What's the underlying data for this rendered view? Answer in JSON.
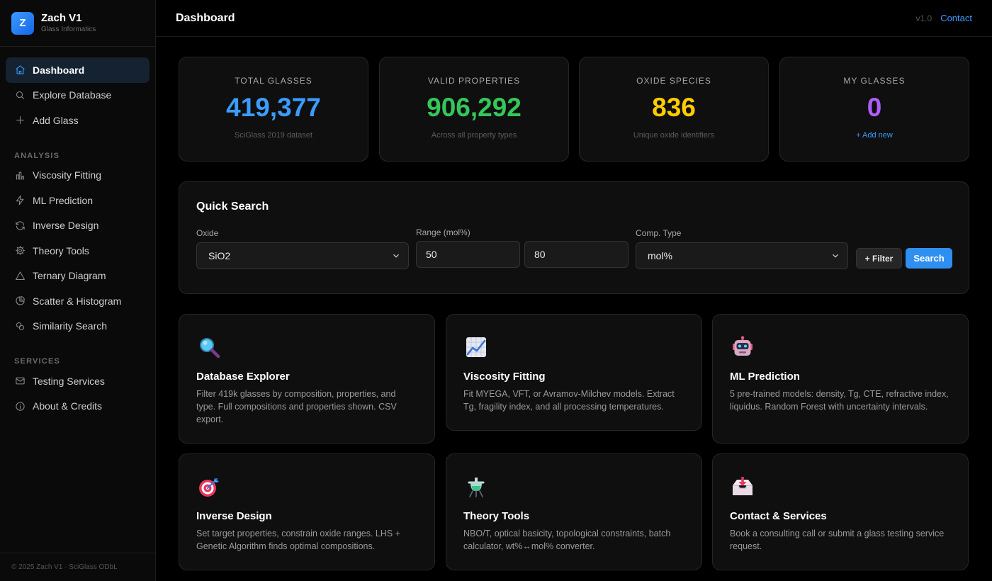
{
  "brand": {
    "logo_letter": "Z",
    "title": "Zach V1",
    "subtitle": "Glass Informatics"
  },
  "nav": {
    "main": [
      {
        "label": "Dashboard",
        "icon": "home-icon",
        "active": true
      },
      {
        "label": "Explore Database",
        "icon": "search-icon"
      },
      {
        "label": "Add Glass",
        "icon": "plus-icon"
      }
    ],
    "analysis_label": "ANALYSIS",
    "analysis": [
      {
        "label": "Viscosity Fitting",
        "icon": "bar-chart-icon"
      },
      {
        "label": "ML Prediction",
        "icon": "lightning-icon"
      },
      {
        "label": "Inverse Design",
        "icon": "refresh-icon"
      },
      {
        "label": "Theory Tools",
        "icon": "gear-icon"
      },
      {
        "label": "Ternary Diagram",
        "icon": "triangle-icon"
      },
      {
        "label": "Scatter & Histogram",
        "icon": "pie-chart-icon"
      },
      {
        "label": "Similarity Search",
        "icon": "circles-icon"
      }
    ],
    "services_label": "SERVICES",
    "services": [
      {
        "label": "Testing Services",
        "icon": "mail-icon"
      },
      {
        "label": "About & Credits",
        "icon": "info-icon"
      }
    ]
  },
  "footer": {
    "text": "© 2025 Zach V1 · SciGlass ODbL"
  },
  "topbar": {
    "title": "Dashboard",
    "version": "v1.0",
    "contact": "Contact"
  },
  "stats": [
    {
      "label": "TOTAL GLASSES",
      "value": "419,377",
      "sub": "SciGlass 2019 dataset",
      "color": "#3b9cff"
    },
    {
      "label": "VALID PROPERTIES",
      "value": "906,292",
      "sub": "Across all property types",
      "color": "#34c759"
    },
    {
      "label": "OXIDE SPECIES",
      "value": "836",
      "sub": "Unique oxide identifiers",
      "color": "#ffcc00"
    },
    {
      "label": "MY GLASSES",
      "value": "0",
      "sub": "+ Add new",
      "color": "#b05cff"
    }
  ],
  "quick_search": {
    "title": "Quick Search",
    "oxide_label": "Oxide",
    "oxide_value": "SiO2",
    "range_label": "Range (mol%)",
    "range_min": "50",
    "range_max": "80",
    "comp_label": "Comp. Type",
    "comp_value": "mol%",
    "filter_button": "+ Filter",
    "search_button": "Search"
  },
  "features": [
    {
      "title": "Database Explorer",
      "desc": "Filter 419k glasses by composition, properties, and type. Full compositions and properties shown. CSV export.",
      "icon": "magnifier-icon"
    },
    {
      "title": "Viscosity Fitting",
      "desc": "Fit MYEGA, VFT, or Avramov-Milchev models. Extract Tg, fragility index, and all processing temperatures.",
      "icon": "chart-increasing-icon"
    },
    {
      "title": "ML Prediction",
      "desc": "5 pre-trained models: density, Tg, CTE, refractive index, liquidus. Random Forest with uncertainty intervals.",
      "icon": "robot-icon"
    },
    {
      "title": "Inverse Design",
      "desc": "Set target properties, constrain oxide ranges. LHS + Genetic Algorithm finds optimal compositions.",
      "icon": "target-icon"
    },
    {
      "title": "Theory Tools",
      "desc": "NBO/T, optical basicity, topological constraints, batch calculator, wt%↔mol% converter.",
      "icon": "flask-icon"
    },
    {
      "title": "Contact & Services",
      "desc": "Book a consulting call or submit a glass testing service request.",
      "icon": "inbox-tray-icon"
    }
  ]
}
